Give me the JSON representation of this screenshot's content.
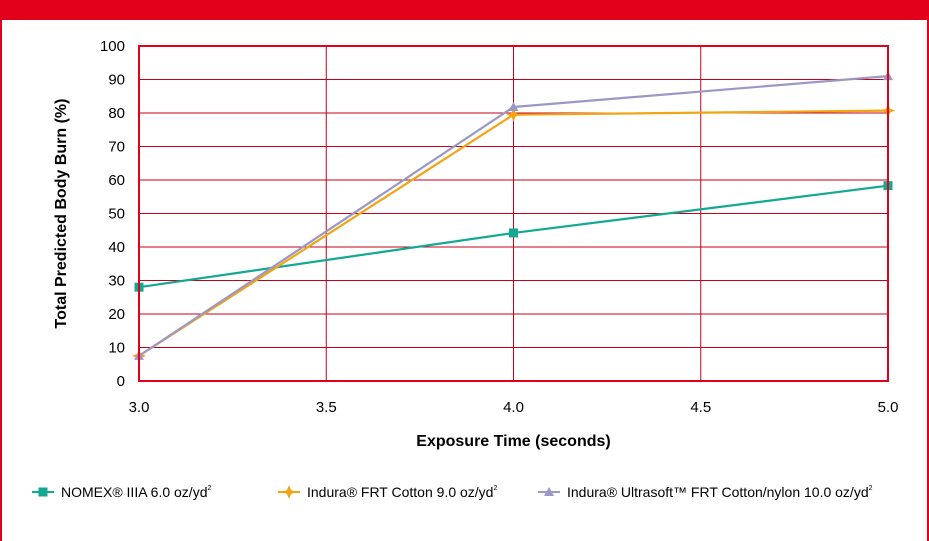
{
  "chart_data": {
    "type": "line",
    "title": "",
    "xlabel": "Exposure Time (seconds)",
    "ylabel": "Total Predicted Body Burn (%)",
    "xlim": [
      3.0,
      5.0
    ],
    "ylim": [
      0,
      100
    ],
    "x_ticks": [
      "3.0",
      "3.5",
      "4.0",
      "4.5",
      "5.0"
    ],
    "y_ticks": [
      "0",
      "10",
      "20",
      "30",
      "40",
      "50",
      "60",
      "70",
      "80",
      "90",
      "100"
    ],
    "grid": true,
    "legend_position": "bottom",
    "x": [
      3.0,
      4.0,
      5.0
    ],
    "series": [
      {
        "name": "NOMEX® IIIA 6.0 oz/yd²",
        "legend_main": "NOMEX® IIIA 6.0 oz/yd",
        "legend_sup": "2",
        "marker": "square",
        "color": "#13a892",
        "values": [
          28,
          44.2,
          58.3
        ]
      },
      {
        "name": "Indura® FRT Cotton 9.0 oz/yd²",
        "legend_main": "Indura® FRT Cotton 9.0 oz/yd",
        "legend_sup": "2",
        "marker": "star",
        "color": "#f2a413",
        "values": [
          7.5,
          79.5,
          80.7
        ]
      },
      {
        "name": "Indura® Ultrasoft™ FRT Cotton/nylon 10.0 oz/yd²",
        "legend_main": "Indura® Ultrasoft™ FRT Cotton/nylon 10.0 oz/yd",
        "legend_sup": "2",
        "marker": "triangle",
        "color": "#9b98c8",
        "values": [
          7.5,
          81.8,
          91
        ]
      }
    ]
  },
  "colors": {
    "frame": "#e2001a",
    "plot_border": "#e2001a",
    "grid": "#c4001a"
  }
}
